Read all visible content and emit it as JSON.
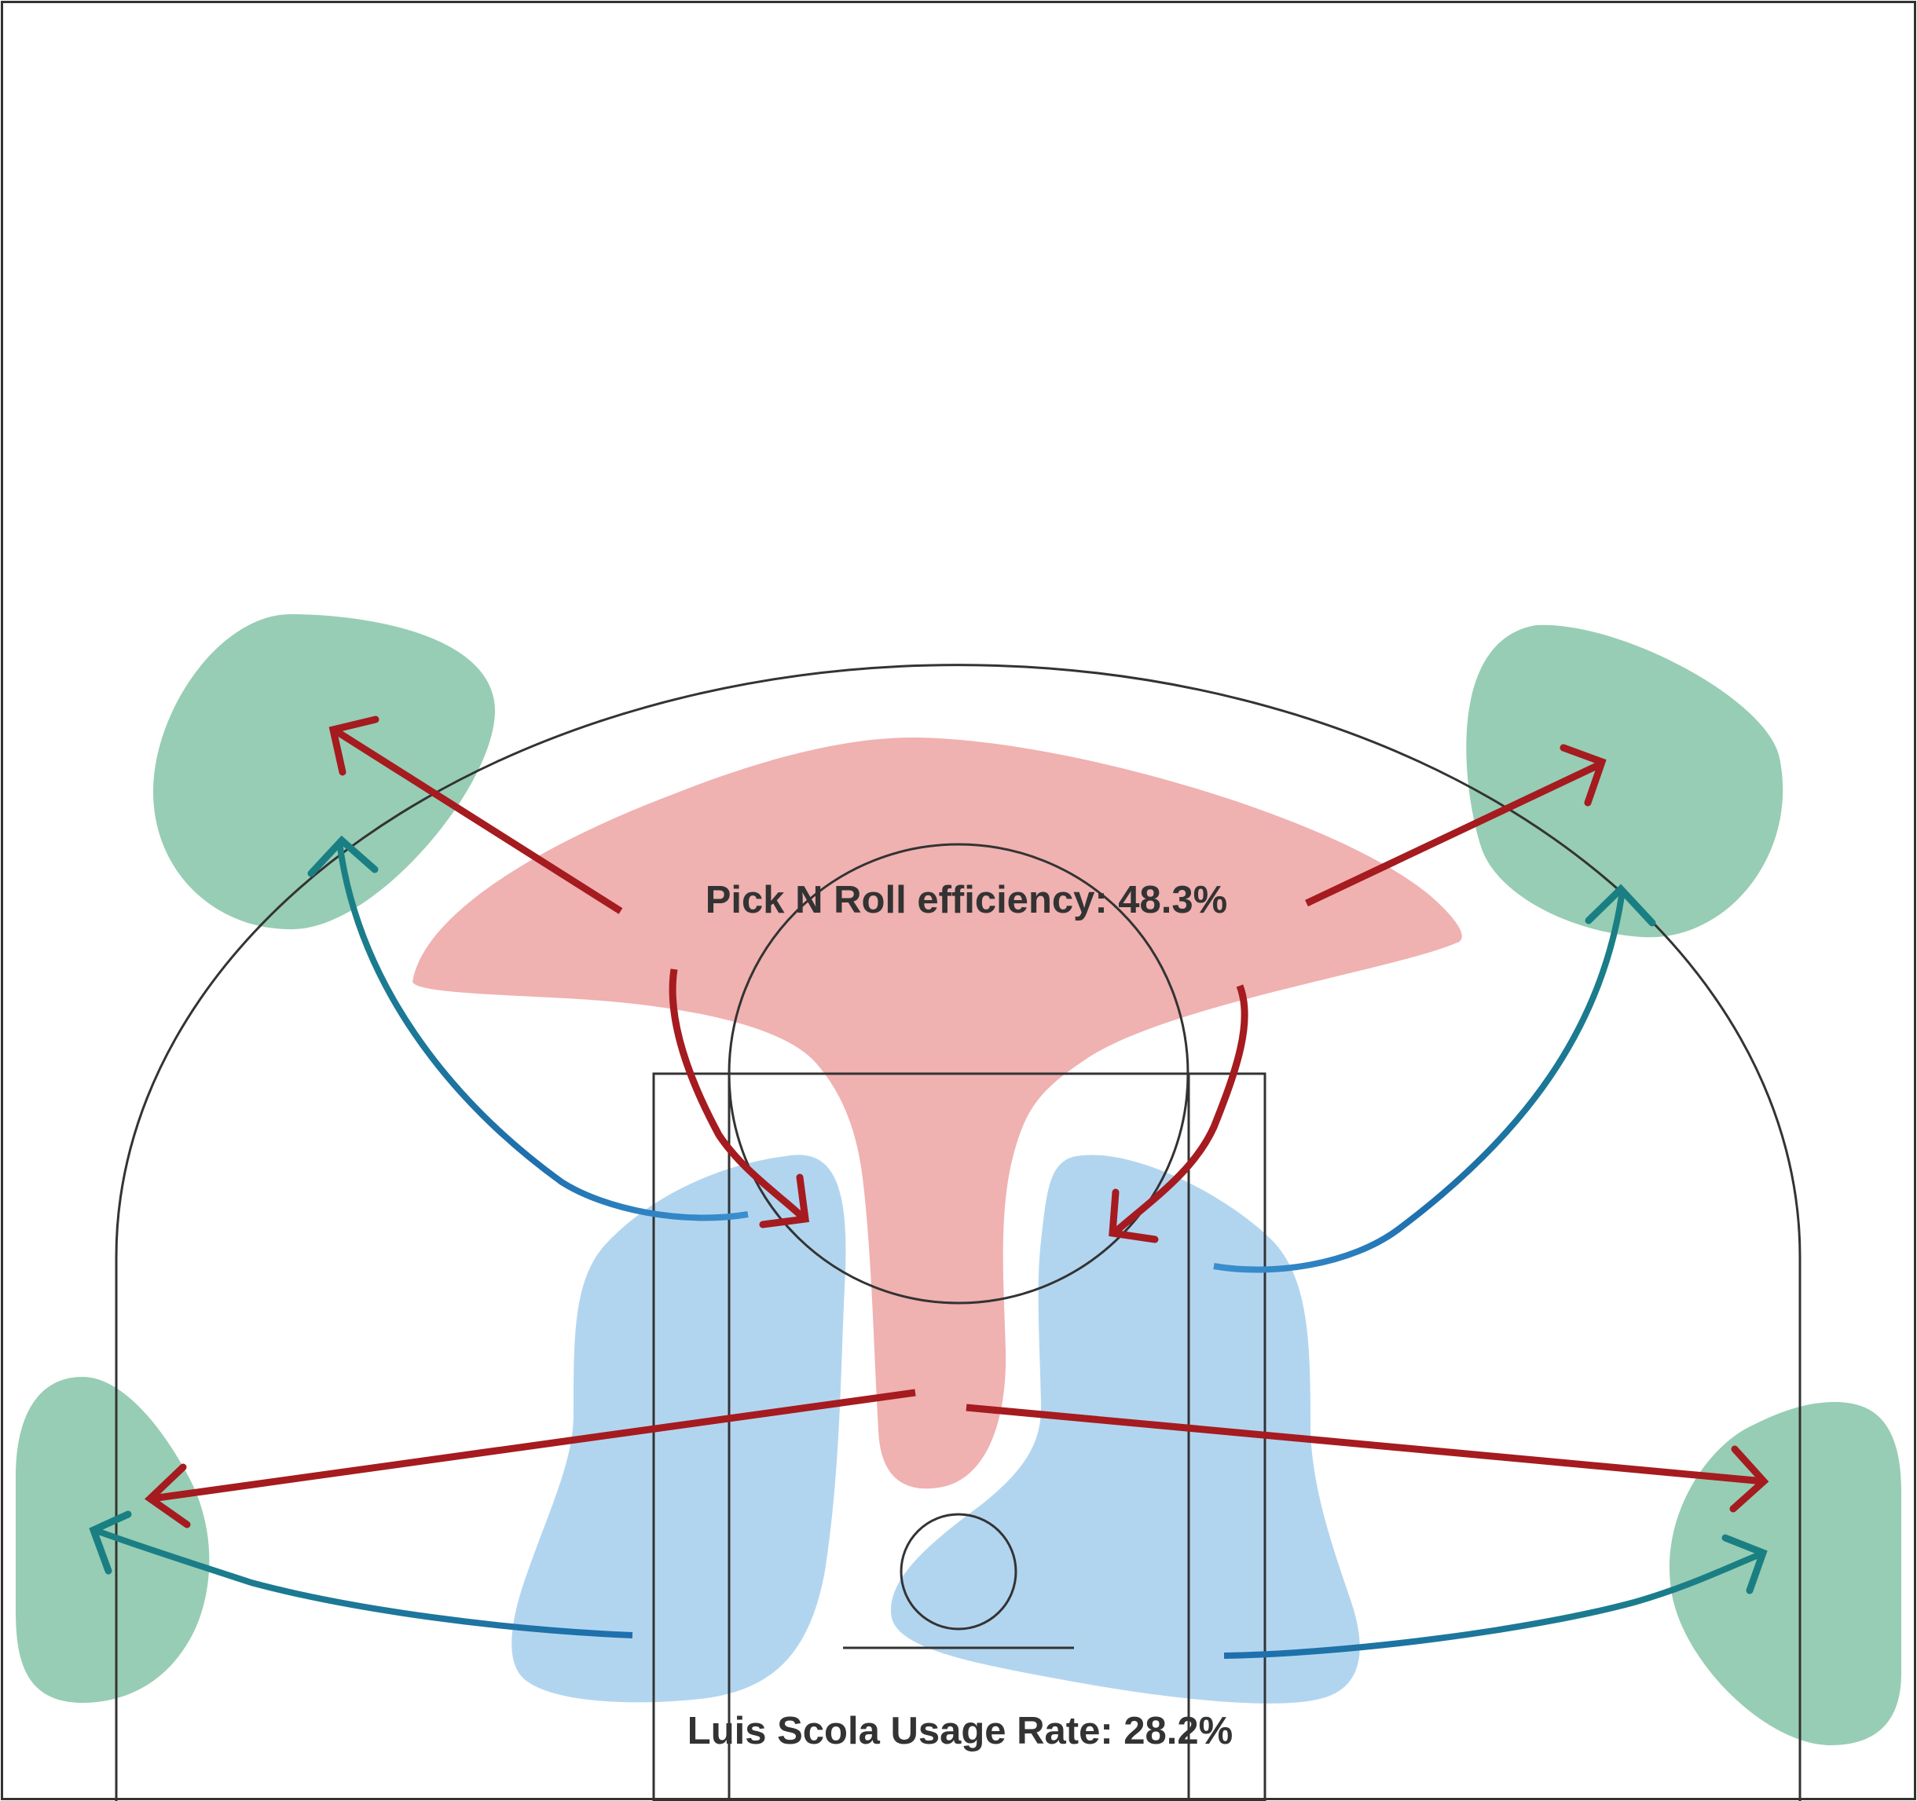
{
  "labels": {
    "pnr_efficiency": "Pick N Roll efficiency: 48.3%",
    "usage_rate": "Luis Scola Usage Rate: 28.2%"
  },
  "colors": {
    "court_lines": "#333333",
    "corner_zones": "#97cdb4",
    "pick_n_roll_zone": "#f0b1b1",
    "post_zones": "#b2d5ef",
    "red_arrows": "#a51b1f",
    "pass_arrows_start": "#1f6fb0",
    "pass_arrows_end": "#1a7f83"
  }
}
